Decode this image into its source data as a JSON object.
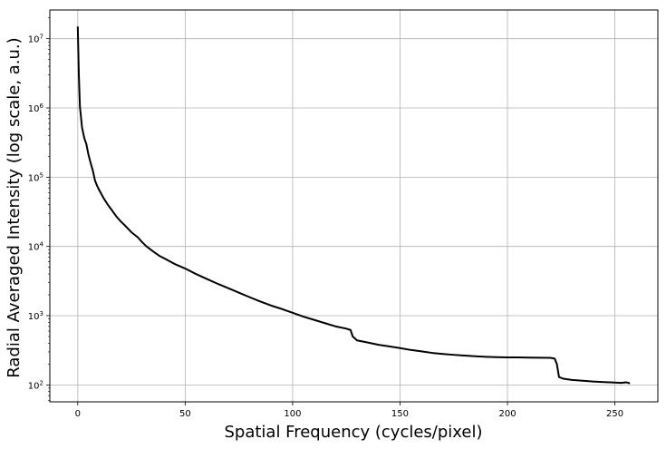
{
  "chart_data": {
    "type": "line",
    "title": "",
    "xlabel": "Spatial Frequency (cycles/pixel)",
    "ylabel": "Radial Averaged Intensity (log scale, a.u.)",
    "xlim": [
      -13,
      270
    ],
    "ylim": [
      57,
      26000000
    ],
    "yscale": "log",
    "grid": true,
    "x_ticks": [
      0,
      50,
      100,
      150,
      200,
      250
    ],
    "x_tick_labels": [
      "0",
      "50",
      "100",
      "150",
      "200",
      "250"
    ],
    "y_ticks": [
      100,
      1000,
      10000,
      100000,
      1000000,
      10000000
    ],
    "y_tick_labels": [
      {
        "base": "10",
        "exp": "2"
      },
      {
        "base": "10",
        "exp": "3"
      },
      {
        "base": "10",
        "exp": "4"
      },
      {
        "base": "10",
        "exp": "5"
      },
      {
        "base": "10",
        "exp": "6"
      },
      {
        "base": "10",
        "exp": "7"
      }
    ],
    "series": [
      {
        "color": "#000000",
        "x": [
          0,
          0.5,
          1,
          2,
          3,
          4,
          5,
          6,
          7,
          8,
          9,
          10,
          12,
          14,
          16,
          18,
          20,
          22,
          25,
          28,
          30,
          32,
          35,
          38,
          40,
          45,
          50,
          55,
          60,
          65,
          70,
          75,
          80,
          85,
          90,
          95,
          100,
          105,
          110,
          115,
          120,
          125,
          127,
          128,
          130,
          135,
          140,
          145,
          150,
          155,
          160,
          165,
          170,
          175,
          180,
          185,
          190,
          195,
          200,
          205,
          210,
          215,
          220,
          222,
          223,
          224,
          226,
          230,
          235,
          240,
          245,
          250,
          253,
          255,
          256,
          257
        ],
        "y": [
          15000000,
          3000000,
          1050000,
          520000,
          370000,
          300000,
          210000,
          160000,
          125000,
          90000,
          75000,
          65000,
          50000,
          40000,
          33000,
          27000,
          23000,
          20000,
          16000,
          13500,
          11500,
          10000,
          8500,
          7300,
          6800,
          5600,
          4800,
          4000,
          3400,
          2900,
          2500,
          2150,
          1850,
          1600,
          1400,
          1250,
          1100,
          970,
          870,
          780,
          700,
          650,
          620,
          500,
          440,
          410,
          380,
          360,
          340,
          320,
          305,
          290,
          280,
          272,
          265,
          260,
          255,
          252,
          250,
          250,
          248,
          247,
          246,
          240,
          200,
          130,
          123,
          118,
          115,
          112,
          110,
          108,
          107,
          109,
          108,
          105
        ]
      }
    ]
  }
}
